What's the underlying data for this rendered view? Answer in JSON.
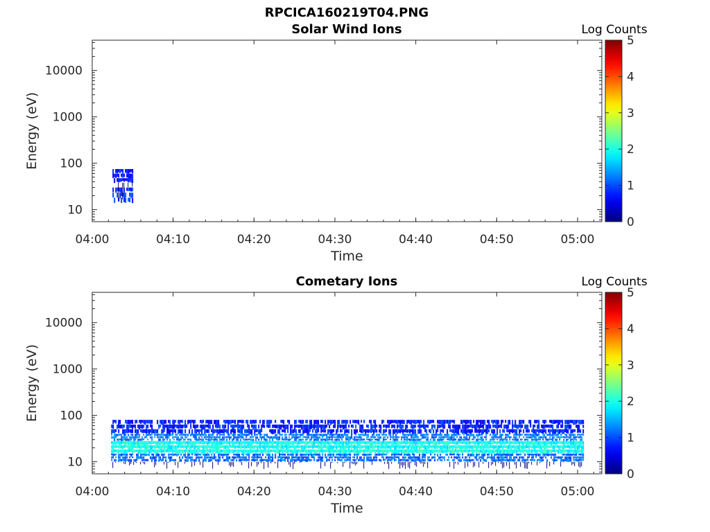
{
  "figure": {
    "title": "RPCICA160219T04.PNG"
  },
  "chart_data": [
    {
      "type": "heatmap",
      "title": "Solar Wind Ions",
      "xlabel": "Time",
      "ylabel": "Energy (eV)",
      "y_scale": "log",
      "ylim": [
        5.5,
        45000
      ],
      "xlim": [
        "04:00",
        "05:03"
      ],
      "x_ticks": [
        "04:00",
        "04:10",
        "04:20",
        "04:30",
        "04:40",
        "04:50",
        "05:00"
      ],
      "y_ticks": [
        "10",
        "100",
        "1000",
        "10000"
      ],
      "colorbar": {
        "label": "Log Counts",
        "range": [
          0,
          5
        ],
        "ticks": [
          "0",
          "1",
          "2",
          "3",
          "4",
          "5"
        ],
        "colormap": "jet"
      },
      "data_extent": {
        "t_start": "04:02:30",
        "t_end": "04:05:00",
        "e_min": 8,
        "e_max": 75
      },
      "bands": [
        {
          "e_low": 14,
          "e_high": 30,
          "log_counts": 0.4
        },
        {
          "e_low": 38,
          "e_high": 75,
          "log_counts": 0.2
        }
      ]
    },
    {
      "type": "heatmap",
      "title": "Cometary Ions",
      "xlabel": "Time",
      "ylabel": "Energy (eV)",
      "y_scale": "log",
      "ylim": [
        5.5,
        45000
      ],
      "xlim": [
        "04:00",
        "05:03"
      ],
      "x_ticks": [
        "04:00",
        "04:10",
        "04:20",
        "04:30",
        "04:40",
        "04:50",
        "05:00"
      ],
      "y_ticks": [
        "10",
        "100",
        "1000",
        "10000"
      ],
      "colorbar": {
        "label": "Log Counts",
        "range": [
          0,
          5
        ],
        "ticks": [
          "0",
          "1",
          "2",
          "3",
          "4",
          "5"
        ],
        "colormap": "jet"
      },
      "data_extent": {
        "t_start": "04:02:20",
        "t_end": "05:00:45",
        "e_min": 7,
        "e_max": 80
      },
      "bands": [
        {
          "e_low": 40,
          "e_high": 80,
          "log_counts": 0.3
        },
        {
          "e_low": 28,
          "e_high": 40,
          "log_counts": 0.8
        },
        {
          "e_low": 15,
          "e_high": 28,
          "log_counts": 1.6
        },
        {
          "e_low": 10,
          "e_high": 15,
          "log_counts": 0.7
        }
      ]
    }
  ]
}
